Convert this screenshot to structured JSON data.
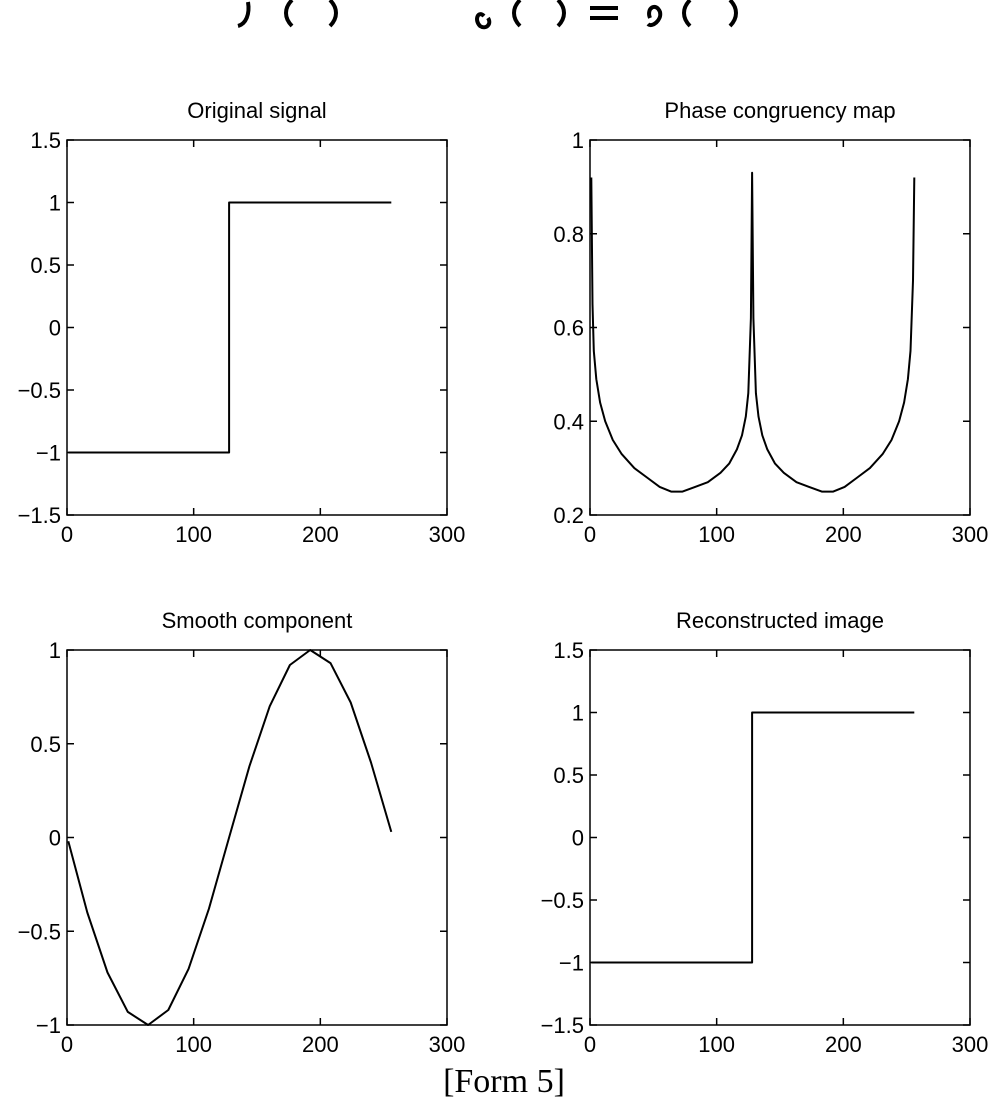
{
  "caption": "[Form 5]",
  "chart_data": [
    {
      "type": "line",
      "title": "Original signal",
      "xlim": [
        0,
        300
      ],
      "ylim": [
        -1.5,
        1.5
      ],
      "xticks": [
        "0",
        "100",
        "200",
        "300"
      ],
      "yticks": [
        "-1.5",
        "-1",
        "-0.5",
        "0",
        "0.5",
        "1",
        "1.5"
      ],
      "x": [
        1,
        128,
        128,
        256
      ],
      "y": [
        -1,
        -1,
        1,
        1
      ]
    },
    {
      "type": "line",
      "title": "Phase congruency map",
      "xlim": [
        0,
        300
      ],
      "ylim": [
        0.2,
        1
      ],
      "xticks": [
        "0",
        "100",
        "200",
        "300"
      ],
      "yticks": [
        "0.2",
        "0.4",
        "0.6",
        "0.8",
        "1"
      ],
      "x": [
        1,
        2,
        3,
        5,
        8,
        12,
        18,
        25,
        35,
        45,
        55,
        64,
        73,
        83,
        93,
        103,
        110,
        116,
        120,
        123,
        125,
        127,
        128,
        129,
        131,
        133,
        136,
        140,
        146,
        153,
        163,
        173,
        183,
        192,
        201,
        211,
        221,
        231,
        238,
        244,
        248,
        251,
        253,
        255,
        256
      ],
      "y": [
        0.92,
        0.65,
        0.55,
        0.49,
        0.44,
        0.4,
        0.36,
        0.33,
        0.3,
        0.28,
        0.26,
        0.25,
        0.25,
        0.26,
        0.27,
        0.29,
        0.31,
        0.34,
        0.37,
        0.41,
        0.46,
        0.62,
        0.93,
        0.62,
        0.46,
        0.41,
        0.37,
        0.34,
        0.31,
        0.29,
        0.27,
        0.26,
        0.25,
        0.25,
        0.26,
        0.28,
        0.3,
        0.33,
        0.36,
        0.4,
        0.44,
        0.49,
        0.55,
        0.7,
        0.92
      ]
    },
    {
      "type": "line",
      "title": "Smooth component",
      "xlim": [
        0,
        300
      ],
      "ylim": [
        -1,
        1
      ],
      "xticks": [
        "0",
        "100",
        "200",
        "300"
      ],
      "yticks": [
        "-1",
        "-0.5",
        "0",
        "0.5",
        "1"
      ],
      "x": [
        1,
        16,
        32,
        48,
        64,
        80,
        96,
        112,
        128,
        144,
        160,
        176,
        192,
        208,
        224,
        240,
        256
      ],
      "y": [
        -0.02,
        -0.4,
        -0.72,
        -0.93,
        -1.0,
        -0.92,
        -0.7,
        -0.38,
        0.0,
        0.38,
        0.7,
        0.92,
        1.0,
        0.93,
        0.72,
        0.4,
        0.03
      ]
    },
    {
      "type": "line",
      "title": "Reconstructed image",
      "xlim": [
        0,
        300
      ],
      "ylim": [
        -1.5,
        1.5
      ],
      "xticks": [
        "0",
        "100",
        "200",
        "300"
      ],
      "yticks": [
        "-1.5",
        "-1",
        "-0.5",
        "0",
        "0.5",
        "1",
        "1.5"
      ],
      "x": [
        1,
        128,
        128,
        256
      ],
      "y": [
        -1,
        -1,
        1,
        1
      ]
    }
  ]
}
